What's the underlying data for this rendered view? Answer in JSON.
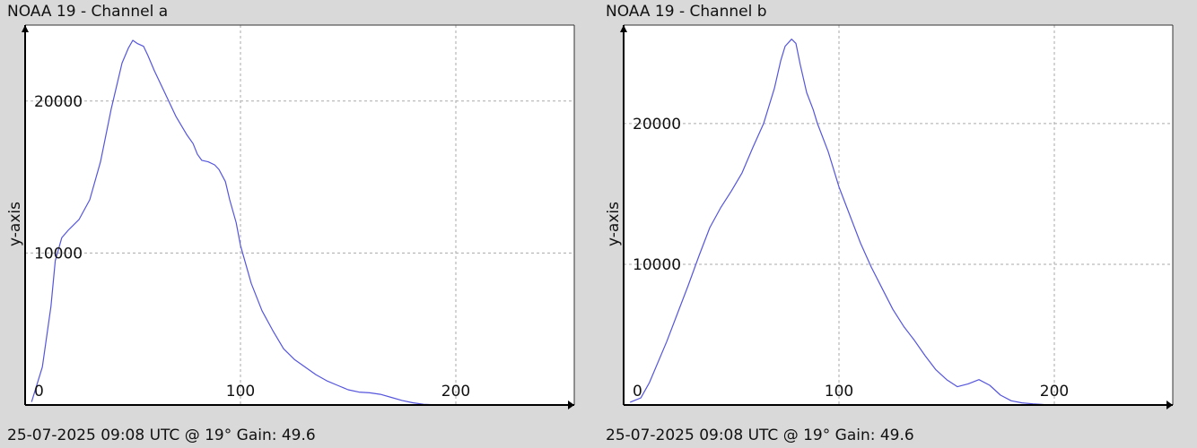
{
  "panels": [
    {
      "title": "NOAA 19 - Channel a",
      "footer": "25-07-2025 09:08 UTC @ 19° Gain: 49.6"
    },
    {
      "title": "NOAA 19 - Channel b",
      "footer": "25-07-2025 09:08 UTC @ 19° Gain: 49.6"
    }
  ],
  "chart_data": [
    {
      "type": "line",
      "title": "NOAA 19 - Channel a",
      "xlabel": "",
      "ylabel": "y-axis",
      "xlim": [
        0,
        255
      ],
      "ylim": [
        0,
        25000
      ],
      "x_ticks": [
        0,
        100,
        200
      ],
      "y_ticks": [
        10000,
        20000
      ],
      "grid": true,
      "line_color": "#5555dd",
      "series": [
        {
          "x": [
            3,
            8,
            12,
            14,
            17,
            20,
            25,
            30,
            35,
            40,
            45,
            48,
            50,
            52,
            55,
            57,
            60,
            65,
            70,
            75,
            78,
            80,
            82,
            85,
            88,
            90,
            93,
            95,
            98,
            100,
            105,
            110,
            115,
            120,
            125,
            130,
            135,
            140,
            145,
            150,
            155,
            160,
            165,
            170,
            175,
            180,
            185,
            190
          ],
          "y": [
            200,
            2500,
            6500,
            9500,
            11000,
            11500,
            12200,
            13500,
            16000,
            19500,
            22500,
            23500,
            24000,
            23800,
            23600,
            23000,
            22000,
            20500,
            19000,
            17800,
            17200,
            16500,
            16100,
            16000,
            15800,
            15500,
            14700,
            13500,
            12000,
            10500,
            8000,
            6200,
            4900,
            3700,
            3000,
            2500,
            2000,
            1600,
            1300,
            1000,
            850,
            800,
            700,
            500,
            300,
            150,
            50,
            20
          ]
        }
      ]
    },
    {
      "type": "line",
      "title": "NOAA 19 - Channel b",
      "xlabel": "",
      "ylabel": "y-axis",
      "xlim": [
        0,
        255
      ],
      "ylim": [
        0,
        27000
      ],
      "x_ticks": [
        0,
        100,
        200
      ],
      "y_ticks": [
        10000,
        20000
      ],
      "grid": true,
      "line_color": "#5555dd",
      "series": [
        {
          "x": [
            3,
            8,
            12,
            20,
            25,
            30,
            35,
            40,
            45,
            50,
            55,
            60,
            65,
            70,
            73,
            75,
            78,
            80,
            82,
            85,
            88,
            90,
            95,
            100,
            105,
            110,
            115,
            120,
            125,
            130,
            135,
            140,
            145,
            150,
            155,
            160,
            165,
            170,
            175,
            180,
            185,
            190,
            195,
            198
          ],
          "y": [
            200,
            500,
            1600,
            4500,
            6500,
            8500,
            10600,
            12600,
            14000,
            15200,
            16500,
            18300,
            20000,
            22500,
            24500,
            25500,
            26000,
            25700,
            24200,
            22200,
            21000,
            20000,
            18000,
            15500,
            13500,
            11500,
            9800,
            8300,
            6800,
            5600,
            4600,
            3500,
            2500,
            1800,
            1300,
            1500,
            1800,
            1400,
            700,
            300,
            150,
            80,
            30,
            10
          ]
        }
      ]
    }
  ]
}
